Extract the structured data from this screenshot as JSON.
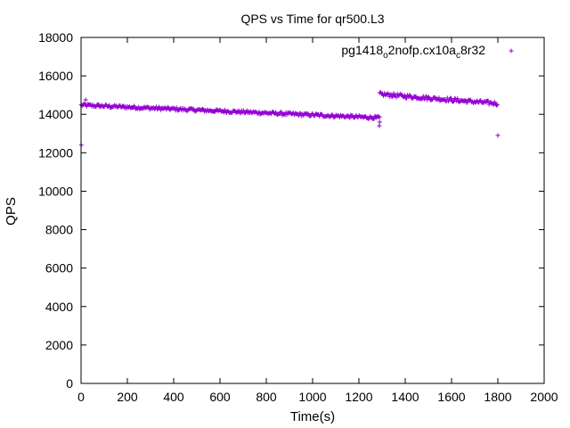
{
  "chart_data": {
    "type": "scatter",
    "title": "QPS vs Time for qr500.L3",
    "xlabel": "Time(s)",
    "ylabel": "QPS",
    "xlim": [
      0,
      2000
    ],
    "ylim": [
      0,
      18000
    ],
    "xticks": [
      0,
      200,
      400,
      600,
      800,
      1000,
      1200,
      1400,
      1600,
      1800,
      2000
    ],
    "yticks": [
      0,
      2000,
      4000,
      6000,
      8000,
      10000,
      12000,
      14000,
      16000,
      18000
    ],
    "grid": false,
    "legend": {
      "position": "top-right",
      "label_parts": [
        "pg1418",
        "o",
        "2nofp.cx10a",
        "c",
        "8r32"
      ]
    },
    "series": [
      {
        "name": "pg1418_o2nofp.cx10a_c8r32",
        "color": "#9400d3",
        "marker": "+",
        "segments": [
          {
            "x_start": 1,
            "x_end": 1290,
            "step": 4,
            "y_start": 14480,
            "y_end": 13820,
            "jitter": 160
          },
          {
            "x_start": 1290,
            "x_end": 1800,
            "step": 4,
            "y_start": 15050,
            "y_end": 14560,
            "jitter": 200
          }
        ],
        "outliers": [
          {
            "x": 1,
            "y": 12400
          },
          {
            "x": 1288,
            "y": 13400
          },
          {
            "x": 1290,
            "y": 13600
          },
          {
            "x": 1800,
            "y": 12900
          },
          {
            "x": 20,
            "y": 14750
          }
        ]
      }
    ]
  }
}
